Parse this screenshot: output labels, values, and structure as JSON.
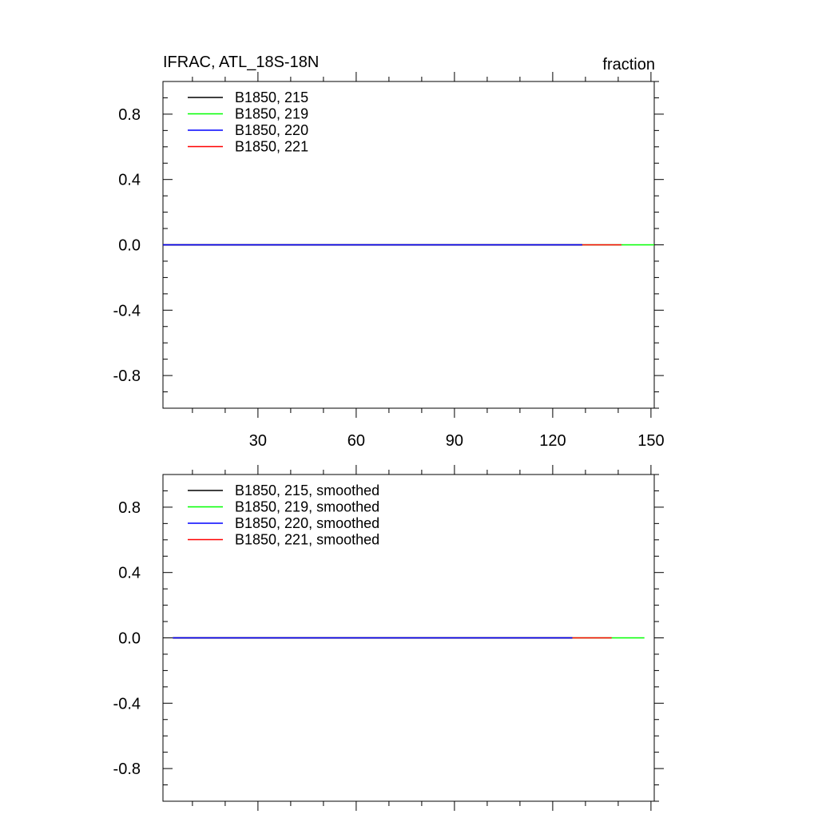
{
  "page": {
    "title_left": "IFRAC, ATL_18S-18N",
    "title_right": "fraction"
  },
  "chart_data": [
    {
      "type": "line",
      "title": "IFRAC, ATL_18S-18N",
      "units": "fraction",
      "xlim": [
        1,
        151
      ],
      "ylim": [
        -1,
        1
      ],
      "x_ticks": [
        30,
        60,
        90,
        120,
        150
      ],
      "x_tick_labels": [
        "30",
        "60",
        "90",
        "120",
        "150"
      ],
      "y_ticks": [
        0.8,
        0.4,
        0.0,
        -0.4,
        -0.8
      ],
      "y_tick_labels": [
        "0.8",
        "0.4",
        "0.0",
        "-0.4",
        "-0.8"
      ],
      "legend_position": "top-left",
      "series": [
        {
          "name": "B1850, 215",
          "color": "#000000",
          "x": [
            1,
            129
          ],
          "y": [
            0,
            0
          ]
        },
        {
          "name": "B1850, 219",
          "color": "#00ff00",
          "x": [
            1,
            151
          ],
          "y": [
            0,
            0
          ]
        },
        {
          "name": "B1850, 220",
          "color": "#0000ff",
          "x": [
            1,
            129
          ],
          "y": [
            0,
            0
          ]
        },
        {
          "name": "B1850, 221",
          "color": "#ff0000",
          "x": [
            1,
            141
          ],
          "y": [
            0,
            0
          ]
        }
      ]
    },
    {
      "type": "line",
      "xlim": [
        1,
        151
      ],
      "ylim": [
        -1,
        1
      ],
      "x_ticks": [
        30,
        60,
        90,
        120,
        150
      ],
      "x_tick_labels": [],
      "y_ticks": [
        0.8,
        0.4,
        0.0,
        -0.4,
        -0.8
      ],
      "y_tick_labels": [
        "0.8",
        "0.4",
        "0.0",
        "-0.4",
        "-0.8"
      ],
      "legend_position": "top-left",
      "series": [
        {
          "name": "B1850, 215, smoothed",
          "color": "#000000",
          "x": [
            4,
            126
          ],
          "y": [
            0,
            0
          ]
        },
        {
          "name": "B1850, 219, smoothed",
          "color": "#00ff00",
          "x": [
            4,
            148
          ],
          "y": [
            0,
            0
          ]
        },
        {
          "name": "B1850, 220, smoothed",
          "color": "#0000ff",
          "x": [
            4,
            126
          ],
          "y": [
            0,
            0
          ]
        },
        {
          "name": "B1850, 221, smoothed",
          "color": "#ff0000",
          "x": [
            4,
            138
          ],
          "y": [
            0,
            0
          ]
        }
      ]
    }
  ]
}
